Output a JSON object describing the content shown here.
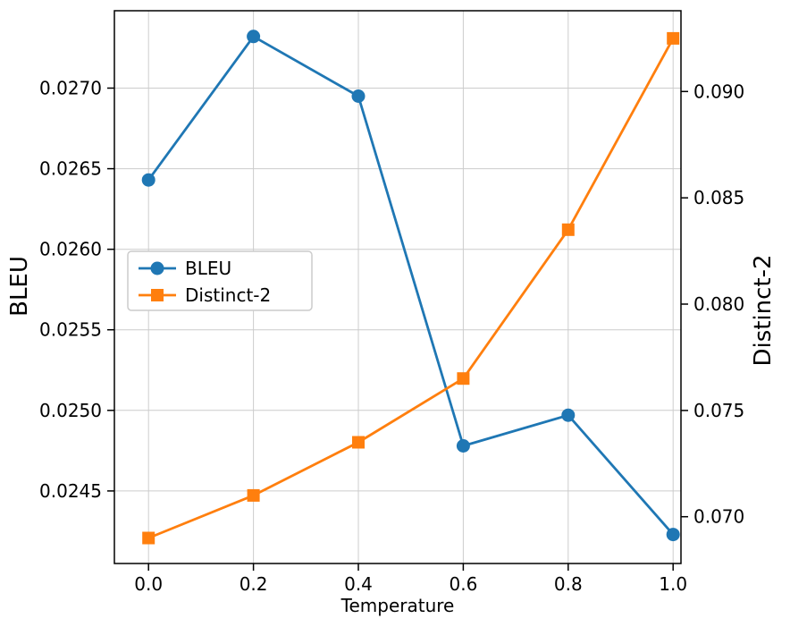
{
  "chart_data": {
    "type": "line",
    "title": "",
    "xlabel": "Temperature",
    "ylabel_left": "BLEU",
    "ylabel_right": "Distinct-2",
    "x": [
      0.0,
      0.2,
      0.4,
      0.6,
      0.8,
      1.0
    ],
    "series": [
      {
        "name": "BLEU",
        "axis": "left",
        "color": "#1f77b4",
        "marker": "circle",
        "values": [
          0.02643,
          0.02732,
          0.02695,
          0.02478,
          0.02497,
          0.02423
        ]
      },
      {
        "name": "Distinct-2",
        "axis": "right",
        "color": "#ff7f0e",
        "marker": "square",
        "values": [
          0.069,
          0.071,
          0.0735,
          0.0765,
          0.0835,
          0.0925
        ]
      }
    ],
    "xlim": [
      -0.065,
      1.015
    ],
    "ylim_left": [
      0.02405,
      0.02748
    ],
    "ylim_right": [
      0.0678,
      0.0938
    ],
    "xticks": {
      "values": [
        0.0,
        0.2,
        0.4,
        0.6,
        0.8,
        1.0
      ],
      "labels": [
        "0.0",
        "0.2",
        "0.4",
        "0.6",
        "0.8",
        "1.0"
      ]
    },
    "yticks_left": {
      "values": [
        0.0245,
        0.025,
        0.0255,
        0.026,
        0.0265,
        0.027
      ],
      "labels": [
        "0.0245",
        "0.0250",
        "0.0255",
        "0.0260",
        "0.0265",
        "0.0270"
      ]
    },
    "yticks_right": {
      "values": [
        0.07,
        0.075,
        0.08,
        0.085,
        0.09
      ],
      "labels": [
        "0.070",
        "0.075",
        "0.080",
        "0.085",
        "0.090"
      ]
    },
    "grid": true,
    "grid_color": "#cccccc",
    "legend": {
      "position": "center-left",
      "labels": [
        "BLEU",
        "Distinct-2"
      ]
    }
  }
}
